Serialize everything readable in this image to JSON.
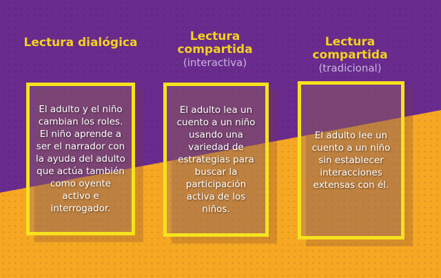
{
  "colors": {
    "purple": "#6a2b8e",
    "orange": "#f6a823",
    "yellow": "#f6e21d"
  },
  "columns": [
    {
      "title": "Lectura dialógica",
      "subtitle": "",
      "text": "El adulto y el niño cambian los roles. El niño aprende a ser el narrador con la ayuda del adulto que actúa también como oyente activo e interrogador."
    },
    {
      "title": "Lectura compartida",
      "subtitle": "(interactiva)",
      "text": "El adulto lea un cuento a un niño usando una variedad de estrategias para buscar la participación activa de los niños."
    },
    {
      "title": "Lectura compartida",
      "subtitle": "(tradicional)",
      "text": "El adulto lee un cuento a un niño sin establecer interacciones extensas con él."
    }
  ]
}
